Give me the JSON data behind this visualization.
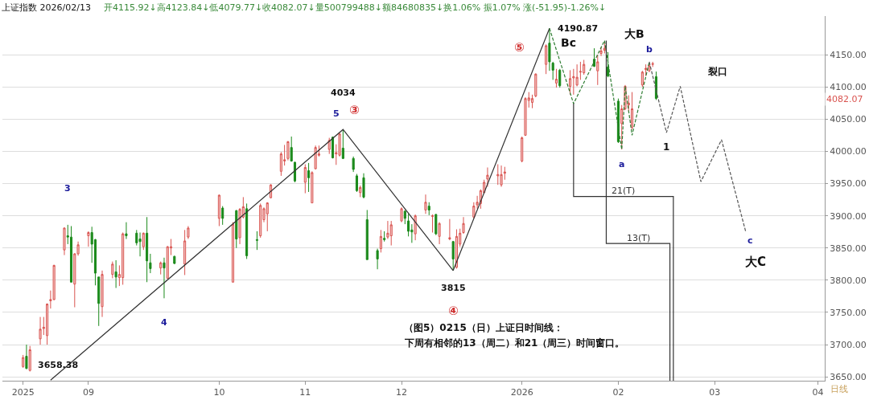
{
  "chart_data": {
    "type": "candlestick",
    "title": "上证指数 2026/02/13",
    "subtitle": "开4115.92↓高4123.84↓低4079.77↓收4082.07↓量500799488↓额84680835↓换1.06% 振1.07% 涨(-51.95)-1.26%↓",
    "x": [
      "2025-08-13",
      "2025-08-14",
      "2025-08-15",
      "2025-08-18",
      "2025-08-19",
      "2025-08-20",
      "2025-08-21",
      "2025-08-22",
      "2025-08-25",
      "2025-08-26",
      "2025-08-27",
      "2025-08-28",
      "2025-08-29",
      "2025-09-01",
      "2025-09-02",
      "2025-09-03",
      "2025-09-04",
      "2025-09-05",
      "2025-09-08",
      "2025-09-09",
      "2025-09-10",
      "2025-09-11",
      "2025-09-12",
      "2025-09-15",
      "2025-09-16",
      "2025-09-17",
      "2025-09-18",
      "2025-09-19",
      "2025-09-22",
      "2025-09-23",
      "2025-09-24",
      "2025-09-25",
      "2025-09-26",
      "2025-09-29",
      "2025-09-30",
      "2025-10-09",
      "2025-10-10",
      "2025-10-13",
      "2025-10-14",
      "2025-10-15",
      "2025-10-16",
      "2025-10-17",
      "2025-10-20",
      "2025-10-21",
      "2025-10-22",
      "2025-10-23",
      "2025-10-24",
      "2025-10-27",
      "2025-10-28",
      "2025-10-29",
      "2025-10-30",
      "2025-10-31",
      "2025-11-03",
      "2025-11-04",
      "2025-11-05",
      "2025-11-06",
      "2025-11-07",
      "2025-11-10",
      "2025-11-11",
      "2025-11-12",
      "2025-11-13",
      "2025-11-14",
      "2025-11-17",
      "2025-11-18",
      "2025-11-19",
      "2025-11-20",
      "2025-11-21",
      "2025-11-24",
      "2025-11-25",
      "2025-11-26",
      "2025-11-27",
      "2025-11-28",
      "2025-12-01",
      "2025-12-02",
      "2025-12-03",
      "2025-12-04",
      "2025-12-05",
      "2025-12-08",
      "2025-12-09",
      "2025-12-10",
      "2025-12-11",
      "2025-12-12",
      "2025-12-15",
      "2025-12-16",
      "2025-12-17",
      "2025-12-18",
      "2025-12-19",
      "2025-12-22",
      "2025-12-23",
      "2025-12-24",
      "2025-12-25",
      "2025-12-26",
      "2025-12-29",
      "2025-12-30",
      "2025-12-31",
      "2026-01-05",
      "2026-01-06",
      "2026-01-07",
      "2026-01-08",
      "2026-01-09",
      "2026-01-12",
      "2026-01-13",
      "2026-01-14",
      "2026-01-15",
      "2026-01-16",
      "2026-01-19",
      "2026-01-20",
      "2026-01-21",
      "2026-01-22",
      "2026-01-23",
      "2026-01-26",
      "2026-01-27",
      "2026-01-28",
      "2026-01-29",
      "2026-01-30",
      "2026-02-02",
      "2026-02-03",
      "2026-02-04",
      "2026-02-05",
      "2026-02-06",
      "2026-02-09",
      "2026-02-10",
      "2026-02-11",
      "2026-02-12",
      "2026-02-13"
    ],
    "ohlc": [
      [
        3666,
        3684,
        3664,
        3680
      ],
      [
        3682,
        3700,
        3662,
        3663
      ],
      [
        3660,
        3698,
        3658.38,
        3692
      ],
      [
        3709,
        3743,
        3700,
        3724
      ],
      [
        3725,
        3743,
        3715,
        3727
      ],
      [
        3714,
        3764,
        3700,
        3763
      ],
      [
        3768,
        3784,
        3756,
        3770
      ],
      [
        3770,
        3824,
        3769,
        3823
      ],
      [
        3847,
        3882,
        3839,
        3881
      ],
      [
        3869,
        3886,
        3856,
        3867
      ],
      [
        3867,
        3884,
        3797,
        3797
      ],
      [
        3794,
        3842,
        3758,
        3841
      ],
      [
        3841,
        3860,
        3838,
        3855
      ],
      [
        3869,
        3876,
        3852,
        3874
      ],
      [
        3874,
        3883,
        3827,
        3856
      ],
      [
        3863,
        3864,
        3792,
        3811
      ],
      [
        3805,
        3805,
        3729,
        3764
      ],
      [
        3759,
        3815,
        3743,
        3809
      ],
      [
        3809,
        3829,
        3803,
        3825
      ],
      [
        3813,
        3831,
        3788,
        3805
      ],
      [
        3804,
        3823,
        3791,
        3809
      ],
      [
        3804,
        3874,
        3793,
        3872
      ],
      [
        3872,
        3890,
        3864,
        3869
      ],
      [
        3873,
        3878,
        3854,
        3858
      ],
      [
        3864,
        3874,
        3837,
        3860
      ],
      [
        3852,
        3874,
        3847,
        3873
      ],
      [
        3873,
        3898,
        3797,
        3830
      ],
      [
        3827,
        3841,
        3811,
        3818
      ],
      [
        3819,
        3829,
        3809,
        3827
      ],
      [
        3827,
        3835,
        3772,
        3819
      ],
      [
        3803,
        3853,
        3802,
        3852
      ],
      [
        3850,
        3864,
        3839,
        3852
      ],
      [
        3837,
        3838,
        3825,
        3826
      ],
      [
        3825,
        3878,
        3808,
        3861
      ],
      [
        3867,
        3884,
        3864,
        3881
      ],
      [
        3896,
        3933,
        3884,
        3932
      ],
      [
        3912,
        3915,
        3886,
        3896
      ],
      [
        3797,
        3890,
        3797,
        3887
      ],
      [
        3908,
        3909,
        3850,
        3864
      ],
      [
        3866,
        3912,
        3856,
        3910
      ],
      [
        3898,
        3929,
        3896,
        3914
      ],
      [
        3911,
        3919,
        3833,
        3838
      ],
      [
        3863,
        3876,
        3847,
        3862
      ],
      [
        3869,
        3919,
        3866,
        3916
      ],
      [
        3894,
        3913,
        3890,
        3911
      ],
      [
        3903,
        3921,
        3876,
        3920
      ],
      [
        3928,
        3949,
        3927,
        3948
      ],
      [
        3969,
        3999,
        3962,
        3996
      ],
      [
        3985,
        4010,
        3978,
        3987
      ],
      [
        3989,
        4016,
        3986,
        4015
      ],
      [
        4006,
        4023,
        3984,
        3985
      ],
      [
        3983,
        3984,
        3952,
        3954
      ],
      [
        3952,
        3980,
        3935,
        3975
      ],
      [
        3970,
        3982,
        3937,
        3959
      ],
      [
        3920,
        3969,
        3920,
        3967
      ],
      [
        3973,
        4009,
        3972,
        4006
      ],
      [
        3994,
        4009,
        3992,
        3996
      ],
      [
        4003,
        4021,
        3996,
        4017
      ],
      [
        4022,
        4023,
        3989,
        3990
      ],
      [
        3996,
        4011,
        3979,
        3998
      ],
      [
        3994,
        4029,
        3992,
        4027
      ],
      [
        4005,
        4034,
        3988,
        3989
      ],
      [
        3989,
        3992,
        3968,
        3972
      ],
      [
        3962,
        3965,
        3937,
        3939
      ],
      [
        3936,
        3947,
        3929,
        3944
      ],
      [
        3959,
        3966,
        3927,
        3929
      ],
      [
        3894,
        3909,
        3832,
        3832
      ],
      [
        3846,
        3849,
        3817,
        3833
      ],
      [
        3849,
        3878,
        3843,
        3868
      ],
      [
        3865,
        3876,
        3860,
        3863
      ],
      [
        3867,
        3892,
        3864,
        3873
      ],
      [
        3869,
        3892,
        3854,
        3886
      ],
      [
        3892,
        3913,
        3890,
        3911
      ],
      [
        3907,
        3909,
        3887,
        3896
      ],
      [
        3892,
        3903,
        3868,
        3876
      ],
      [
        3878,
        3887,
        3858,
        3875
      ],
      [
        3872,
        3902,
        3862,
        3900
      ],
      [
        3909,
        3933,
        3903,
        3921
      ],
      [
        3915,
        3921,
        3901,
        3909
      ],
      [
        3899,
        3902,
        3874,
        3900
      ],
      [
        3902,
        3903,
        3870,
        3872
      ],
      [
        3868,
        3890,
        3856,
        3888
      ],
      [
        3864,
        3895,
        3862,
        3866
      ],
      [
        3860,
        3861,
        3815,
        3833
      ],
      [
        3820,
        3879,
        3818,
        3868
      ],
      [
        3856,
        3880,
        3852,
        3873
      ],
      [
        3874,
        3898,
        3872,
        3888
      ],
      [
        3898,
        3921,
        3896,
        3915
      ],
      [
        3917,
        3931,
        3911,
        3921
      ],
      [
        3919,
        3941,
        3911,
        3939
      ],
      [
        3936,
        3956,
        3935,
        3952
      ],
      [
        3957,
        3975,
        3945,
        3963
      ],
      [
        3962,
        3980,
        3948,
        3964
      ],
      [
        3948,
        3978,
        3945,
        3964
      ],
      [
        3966,
        3976,
        3956,
        3968
      ],
      [
        3985,
        4023,
        3983,
        4021
      ],
      [
        4025,
        4084,
        4024,
        4082
      ],
      [
        4079,
        4092,
        4068,
        4083
      ],
      [
        4076,
        4088,
        4067,
        4082
      ],
      [
        4086,
        4121,
        4084,
        4120
      ],
      [
        4135,
        4166,
        4120,
        4164
      ],
      [
        4168,
        4190.87,
        4125,
        4139
      ],
      [
        4137,
        4139,
        4111,
        4126
      ],
      [
        4106,
        4128,
        4099,
        4112
      ],
      [
        4126,
        4128,
        4099,
        4102
      ],
      [
        4101,
        4126,
        4088,
        4113
      ],
      [
        4114,
        4128,
        4088,
        4116
      ],
      [
        4103,
        4135,
        4101,
        4115
      ],
      [
        4123,
        4139,
        4111,
        4124
      ],
      [
        4122,
        4142,
        4119,
        4135
      ],
      [
        4143,
        4160,
        4131,
        4132
      ],
      [
        4125,
        4150,
        4103,
        4139
      ],
      [
        4152,
        4162,
        4148,
        4156
      ],
      [
        4157,
        4170,
        4152,
        4160
      ],
      [
        4131,
        4154,
        4115,
        4117
      ],
      [
        4078,
        4082,
        4013,
        4015
      ],
      [
        4043,
        4072,
        4003,
        4066
      ],
      [
        4066,
        4103,
        4064,
        4101
      ],
      [
        4072,
        4087,
        4062,
        4075
      ],
      [
        4037,
        4092,
        4034,
        4066
      ],
      [
        4103,
        4125,
        4100,
        4123
      ],
      [
        4127,
        4135,
        4117,
        4129
      ],
      [
        4125,
        4137,
        4123,
        4133
      ],
      [
        4135,
        4139,
        4131,
        4136
      ],
      [
        4115.92,
        4123.84,
        4079.77,
        4082.07
      ]
    ],
    "series": [
      {
        "type": "line",
        "x": [
          "2025-08-21",
          "2025-11-14",
          "2025-12-16",
          "2026-01-13"
        ],
        "values": [
          3645,
          4034,
          3815,
          4190.87
        ],
        "color": "#333333",
        "line_style": "solid"
      },
      {
        "type": "line",
        "x": [
          "2026-01-13",
          "2026-01-20",
          "2026-01-29",
          "2026-02-03",
          "2026-02-04",
          "2026-02-06",
          "2026-02-11"
        ],
        "values": [
          4190.87,
          4074,
          4172,
          4003,
          4101,
          4025,
          4139
        ],
        "color": "#2e7d32",
        "line_style": "dashed"
      },
      {
        "type": "line",
        "x": [
          "2026-02-11",
          "2026-02-16",
          "2026-02-20",
          "2026-02-26",
          "2026-03-04",
          "2026-03-11"
        ],
        "values": [
          4139,
          4029,
          4101,
          3953,
          4018,
          3876
        ],
        "color": "#555555",
        "line_style": "dashed"
      },
      {
        "type": "line",
        "name": "21(T)",
        "x": [
          "2026-01-20",
          "2026-01-20",
          "2026-02-18",
          "2026-02-18"
        ],
        "values": [
          4074,
          3930,
          3930,
          3644
        ],
        "color": "#333333",
        "line_style": "solid"
      },
      {
        "type": "line",
        "name": "13(T)",
        "x": [
          "2026-01-29T12:00",
          "2026-01-29T12:00",
          "2026-02-17",
          "2026-02-17"
        ],
        "values": [
          4172,
          3857,
          3857,
          3644
        ],
        "color": "#333333",
        "line_style": "solid"
      }
    ],
    "annotations": [
      "（图5）0215（日）上证日时间线：",
      "下周有相邻的13（周二）和21（周三）时间窗口。",
      "日线",
      "4082.07",
      "裂口",
      "3",
      "4034",
      {
        "text": "3658.38",
        "x": "2025-08-15",
        "y": 3658.38
      },
      {
        "text": "4",
        "x": "2025-09-23",
        "y": 3772
      },
      {
        "text": "5",
        "x": "2025-11-14",
        "y": 4034
      },
      {
        "text": "③",
        "x": "2025-11-14",
        "y": 4034
      },
      {
        "text": "3815",
        "x": "2025-12-16",
        "y": 3815
      },
      {
        "text": "④",
        "x": "2025-12-16",
        "y": 3815
      },
      {
        "text": "⑤",
        "x": "2026-01-13",
        "y": 4190.87
      },
      {
        "text": "4190.87",
        "x": "2026-01-13",
        "y": 4190.87
      },
      {
        "text": "Bc",
        "x": "2026-01-13",
        "y": 4190.87
      },
      {
        "text": "大B",
        "x": "2026-01-29",
        "y": 4172
      },
      {
        "text": "b",
        "x": "2026-02-11",
        "y": 4139
      },
      {
        "text": "a",
        "x": "2026-02-03",
        "y": 4003
      },
      {
        "text": "1",
        "x": "2026-02-16",
        "y": 4029
      },
      {
        "text": "c",
        "x": "2026-03-11",
        "y": 3876
      },
      {
        "text": "大C",
        "x": "2026-03-11",
        "y": 3876
      }
    ],
    "xlim": [
      "2025-08-07",
      "2026-04-03"
    ],
    "xticks": [
      {
        "value": "2025-08-13",
        "label": "2025"
      },
      {
        "value": "2025-09-01",
        "label": "09"
      },
      {
        "value": "2025-10-09",
        "label": "10"
      },
      {
        "value": "2025-11-03",
        "label": "11"
      },
      {
        "value": "2025-12-01",
        "label": "12"
      },
      {
        "value": "2026-01-05",
        "label": "2026"
      },
      {
        "value": "2026-02-02",
        "label": "02"
      },
      {
        "value": "2026-03-02",
        "label": "03"
      },
      {
        "value": "2026-04-01",
        "label": "04"
      }
    ],
    "ylim": [
      3644,
      4210
    ],
    "yticks": [
      {
        "value": 3650,
        "label": "3650.00"
      },
      {
        "value": 3700,
        "label": "3700.00"
      },
      {
        "value": 3750,
        "label": "3750.00"
      },
      {
        "value": 3800,
        "label": "3800.00"
      },
      {
        "value": 3850,
        "label": "3850.00"
      },
      {
        "value": 3900,
        "label": "3900.00"
      },
      {
        "value": 3950,
        "label": "3950.00"
      },
      {
        "value": 4000,
        "label": "4000.00"
      },
      {
        "value": 4050,
        "label": "4050.00"
      },
      {
        "value": 4100,
        "label": "4100.00"
      },
      {
        "value": 4150,
        "label": "4150.00"
      }
    ],
    "grid": "y"
  }
}
